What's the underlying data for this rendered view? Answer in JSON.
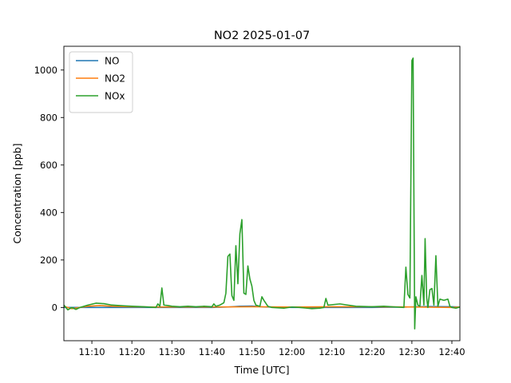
{
  "chart_data": {
    "type": "line",
    "title": "NO2 2025-01-07",
    "xlabel": "Time [UTC]",
    "ylabel": "Concentration [ppb]",
    "xlim": [
      "11:03",
      "12:42"
    ],
    "ylim": [
      -140,
      1100
    ],
    "x_ticks": [
      "11:10",
      "11:20",
      "11:30",
      "11:40",
      "11:50",
      "12:00",
      "12:10",
      "12:20",
      "12:30",
      "12:40"
    ],
    "y_ticks": [
      0,
      200,
      400,
      600,
      800,
      1000
    ],
    "grid": false,
    "legend": "top-left",
    "series": [
      {
        "name": "NO",
        "color": "#1f77b4",
        "points": [
          [
            "11:03",
            0
          ],
          [
            "11:10",
            0
          ],
          [
            "11:20",
            0
          ],
          [
            "11:30",
            0
          ],
          [
            "11:40",
            0
          ],
          [
            "11:44",
            2
          ],
          [
            "11:47",
            5
          ],
          [
            "11:50",
            6
          ],
          [
            "11:53",
            2
          ],
          [
            "12:00",
            0
          ],
          [
            "12:10",
            0
          ],
          [
            "12:20",
            0
          ],
          [
            "12:29",
            2
          ],
          [
            "12:34",
            4
          ],
          [
            "12:40",
            3
          ],
          [
            "12:42",
            2
          ]
        ]
      },
      {
        "name": "NO2",
        "color": "#ff7f0e",
        "points": [
          [
            "11:03",
            5
          ],
          [
            "11:05",
            -5
          ],
          [
            "11:07",
            0
          ],
          [
            "11:09",
            5
          ],
          [
            "11:12",
            8
          ],
          [
            "11:15",
            5
          ],
          [
            "11:20",
            3
          ],
          [
            "11:25",
            2
          ],
          [
            "11:30",
            2
          ],
          [
            "11:40",
            2
          ],
          [
            "11:50",
            3
          ],
          [
            "12:00",
            2
          ],
          [
            "12:10",
            3
          ],
          [
            "12:20",
            3
          ],
          [
            "12:30",
            2
          ],
          [
            "12:40",
            0
          ],
          [
            "12:42",
            2
          ]
        ]
      },
      {
        "name": "NOx",
        "color": "#2ca02c",
        "points": [
          [
            "11:03",
            10
          ],
          [
            "11:04",
            -10
          ],
          [
            "11:05",
            0
          ],
          [
            "11:06",
            -8
          ],
          [
            "11:07",
            0
          ],
          [
            "11:09",
            10
          ],
          [
            "11:11",
            18
          ],
          [
            "11:13",
            16
          ],
          [
            "11:15",
            10
          ],
          [
            "11:18",
            7
          ],
          [
            "11:20",
            5
          ],
          [
            "11:23",
            3
          ],
          [
            "11:26",
            0
          ],
          [
            "11:26.5",
            15
          ],
          [
            "11:27",
            5
          ],
          [
            "11:27.5",
            82
          ],
          [
            "11:28",
            10
          ],
          [
            "11:29",
            8
          ],
          [
            "11:30",
            5
          ],
          [
            "11:32",
            3
          ],
          [
            "11:34",
            5
          ],
          [
            "11:36",
            3
          ],
          [
            "11:38",
            5
          ],
          [
            "11:40",
            3
          ],
          [
            "11:40.5",
            15
          ],
          [
            "11:41",
            5
          ],
          [
            "11:42",
            10
          ],
          [
            "11:43",
            20
          ],
          [
            "11:43.5",
            60
          ],
          [
            "11:44",
            215
          ],
          [
            "11:44.5",
            225
          ],
          [
            "11:45",
            50
          ],
          [
            "11:45.5",
            30
          ],
          [
            "11:46",
            260
          ],
          [
            "11:46.5",
            100
          ],
          [
            "11:47",
            310
          ],
          [
            "11:47.5",
            370
          ],
          [
            "11:48",
            60
          ],
          [
            "11:48.5",
            55
          ],
          [
            "11:49",
            175
          ],
          [
            "11:49.5",
            120
          ],
          [
            "11:50",
            90
          ],
          [
            "11:50.5",
            30
          ],
          [
            "11:51",
            10
          ],
          [
            "11:52",
            5
          ],
          [
            "11:52.5",
            45
          ],
          [
            "11:53",
            30
          ],
          [
            "11:54",
            5
          ],
          [
            "11:55",
            0
          ],
          [
            "11:58",
            -3
          ],
          [
            "12:00",
            2
          ],
          [
            "12:02",
            0
          ],
          [
            "12:05",
            -5
          ],
          [
            "12:07",
            -3
          ],
          [
            "12:08",
            0
          ],
          [
            "12:08.5",
            38
          ],
          [
            "12:09",
            10
          ],
          [
            "12:12",
            15
          ],
          [
            "12:14",
            10
          ],
          [
            "12:16",
            5
          ],
          [
            "12:20",
            3
          ],
          [
            "12:23",
            5
          ],
          [
            "12:26",
            2
          ],
          [
            "12:28",
            0
          ],
          [
            "12:28.5",
            170
          ],
          [
            "12:29",
            55
          ],
          [
            "12:29.5",
            40
          ],
          [
            "12:30",
            1040
          ],
          [
            "12:30.3",
            1050
          ],
          [
            "12:30.7",
            -90
          ],
          [
            "12:31",
            45
          ],
          [
            "12:31.5",
            10
          ],
          [
            "12:32",
            5
          ],
          [
            "12:32.5",
            135
          ],
          [
            "12:33",
            10
          ],
          [
            "12:33.3",
            290
          ],
          [
            "12:33.7",
            40
          ],
          [
            "12:34",
            0
          ],
          [
            "12:34.5",
            75
          ],
          [
            "12:35",
            80
          ],
          [
            "12:35.5",
            10
          ],
          [
            "12:36",
            218
          ],
          [
            "12:36.5",
            5
          ],
          [
            "12:37",
            35
          ],
          [
            "12:38",
            30
          ],
          [
            "12:39",
            35
          ],
          [
            "12:39.5",
            5
          ],
          [
            "12:40",
            0
          ],
          [
            "12:41",
            -3
          ],
          [
            "12:42",
            2
          ]
        ]
      }
    ]
  }
}
